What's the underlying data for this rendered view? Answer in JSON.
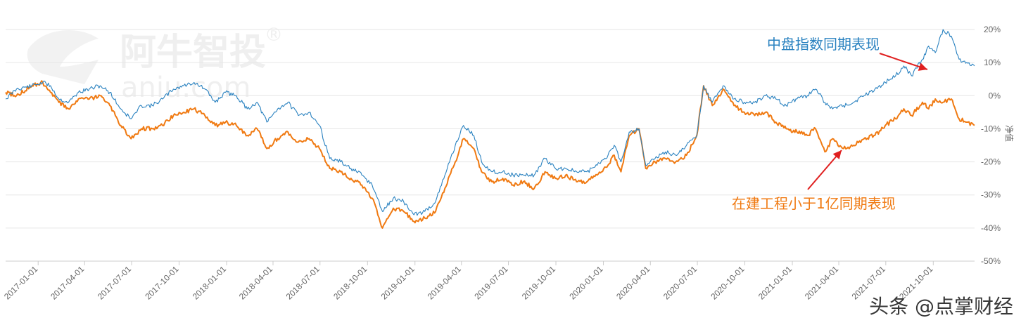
{
  "chart_data": {
    "type": "line",
    "x_tick_labels": [
      "2017-01-01",
      "2017-04-01",
      "2017-07-01",
      "2017-10-01",
      "2018-01-01",
      "2018-04-01",
      "2018-07-01",
      "2018-10-01",
      "2019-01-01",
      "2019-04-01",
      "2019-07-01",
      "2019-10-01",
      "2020-01-01",
      "2020-04-01",
      "2020-07-01",
      "2020-10-01",
      "2021-01-01",
      "2021-04-01",
      "2021-07-01",
      "2021-10-01"
    ],
    "y_tick_labels": [
      "20%",
      "10%",
      "0%",
      "-10%",
      "-20%",
      "-30%",
      "-40%",
      "-50%"
    ],
    "ylabel": "净值",
    "ylim": [
      -50,
      20
    ],
    "x_range": [
      "2016-10-30",
      "2021-12-20"
    ],
    "grid": "horizontal",
    "series": [
      {
        "name": "中盘指数同期表现",
        "color": "#2a82c0",
        "points": [
          [
            "2016-10-30",
            -1
          ],
          [
            "2016-11-20",
            2
          ],
          [
            "2016-12-20",
            3
          ],
          [
            "2017-01-10",
            4
          ],
          [
            "2017-01-25",
            3
          ],
          [
            "2017-02-10",
            -1
          ],
          [
            "2017-03-01",
            -2
          ],
          [
            "2017-03-20",
            1
          ],
          [
            "2017-04-10",
            2
          ],
          [
            "2017-05-01",
            3
          ],
          [
            "2017-05-20",
            1
          ],
          [
            "2017-06-10",
            -4
          ],
          [
            "2017-06-30",
            -7
          ],
          [
            "2017-07-20",
            -3
          ],
          [
            "2017-08-10",
            -3
          ],
          [
            "2017-08-30",
            -1
          ],
          [
            "2017-09-20",
            2
          ],
          [
            "2017-10-10",
            3
          ],
          [
            "2017-10-30",
            4
          ],
          [
            "2017-11-20",
            2
          ],
          [
            "2017-12-10",
            -2
          ],
          [
            "2017-12-30",
            1
          ],
          [
            "2018-01-20",
            0
          ],
          [
            "2018-02-10",
            -4
          ],
          [
            "2018-03-01",
            -2
          ],
          [
            "2018-03-20",
            -8
          ],
          [
            "2018-04-10",
            -4
          ],
          [
            "2018-04-30",
            -2
          ],
          [
            "2018-05-20",
            -6
          ],
          [
            "2018-06-10",
            -5
          ],
          [
            "2018-06-30",
            -9
          ],
          [
            "2018-07-20",
            -19
          ],
          [
            "2018-08-10",
            -20
          ],
          [
            "2018-08-30",
            -22
          ],
          [
            "2018-09-20",
            -24
          ],
          [
            "2018-10-10",
            -27
          ],
          [
            "2018-10-30",
            -35
          ],
          [
            "2018-11-20",
            -31
          ],
          [
            "2018-12-10",
            -32
          ],
          [
            "2018-12-30",
            -36
          ],
          [
            "2019-01-20",
            -35
          ],
          [
            "2019-02-10",
            -32
          ],
          [
            "2019-02-28",
            -24
          ],
          [
            "2019-03-20",
            -15
          ],
          [
            "2019-04-05",
            -9
          ],
          [
            "2019-04-25",
            -12
          ],
          [
            "2019-05-10",
            -20
          ],
          [
            "2019-05-30",
            -23
          ],
          [
            "2019-06-20",
            -23
          ],
          [
            "2019-07-10",
            -24
          ],
          [
            "2019-07-30",
            -24
          ],
          [
            "2019-08-20",
            -24
          ],
          [
            "2019-09-10",
            -19
          ],
          [
            "2019-09-30",
            -22
          ],
          [
            "2019-10-20",
            -22
          ],
          [
            "2019-11-10",
            -23
          ],
          [
            "2019-11-30",
            -23
          ],
          [
            "2019-12-20",
            -21
          ],
          [
            "2020-01-10",
            -18
          ],
          [
            "2020-01-22",
            -15
          ],
          [
            "2020-02-04",
            -20
          ],
          [
            "2020-02-20",
            -11
          ],
          [
            "2020-03-10",
            -10
          ],
          [
            "2020-03-23",
            -21
          ],
          [
            "2020-04-10",
            -19
          ],
          [
            "2020-04-30",
            -17
          ],
          [
            "2020-05-20",
            -18
          ],
          [
            "2020-06-10",
            -15
          ],
          [
            "2020-06-30",
            -12
          ],
          [
            "2020-07-13",
            3
          ],
          [
            "2020-07-30",
            -2
          ],
          [
            "2020-08-20",
            3
          ],
          [
            "2020-09-10",
            -1
          ],
          [
            "2020-09-30",
            -2
          ],
          [
            "2020-10-20",
            -2
          ],
          [
            "2020-11-10",
            0
          ],
          [
            "2020-11-30",
            -1
          ],
          [
            "2020-12-20",
            -3
          ],
          [
            "2021-01-10",
            -1
          ],
          [
            "2021-01-30",
            0
          ],
          [
            "2021-02-15",
            2
          ],
          [
            "2021-03-05",
            -2
          ],
          [
            "2021-03-20",
            -4
          ],
          [
            "2021-04-10",
            -3
          ],
          [
            "2021-04-30",
            -2
          ],
          [
            "2021-05-20",
            0
          ],
          [
            "2021-06-10",
            2
          ],
          [
            "2021-06-30",
            4
          ],
          [
            "2021-07-20",
            6
          ],
          [
            "2021-08-05",
            9
          ],
          [
            "2021-08-20",
            6
          ],
          [
            "2021-09-10",
            11
          ],
          [
            "2021-09-22",
            15
          ],
          [
            "2021-10-05",
            13
          ],
          [
            "2021-10-20",
            20
          ],
          [
            "2021-11-05",
            18
          ],
          [
            "2021-11-20",
            11
          ],
          [
            "2021-12-05",
            10
          ],
          [
            "2021-12-20",
            9
          ]
        ]
      },
      {
        "name": "在建工程小于1亿同期表现",
        "color": "#f07a12",
        "points": [
          [
            "2016-10-30",
            1
          ],
          [
            "2016-11-20",
            0
          ],
          [
            "2016-12-20",
            3
          ],
          [
            "2017-01-10",
            4
          ],
          [
            "2017-01-25",
            1
          ],
          [
            "2017-02-10",
            -2
          ],
          [
            "2017-03-01",
            -4
          ],
          [
            "2017-03-20",
            -1
          ],
          [
            "2017-04-10",
            -1
          ],
          [
            "2017-05-01",
            0
          ],
          [
            "2017-05-20",
            -3
          ],
          [
            "2017-06-10",
            -9
          ],
          [
            "2017-06-30",
            -13
          ],
          [
            "2017-07-20",
            -10
          ],
          [
            "2017-08-10",
            -10
          ],
          [
            "2017-08-30",
            -9
          ],
          [
            "2017-09-20",
            -6
          ],
          [
            "2017-10-10",
            -5
          ],
          [
            "2017-10-30",
            -4
          ],
          [
            "2017-11-20",
            -6
          ],
          [
            "2017-12-10",
            -9
          ],
          [
            "2017-12-30",
            -8
          ],
          [
            "2018-01-20",
            -9
          ],
          [
            "2018-02-10",
            -12
          ],
          [
            "2018-03-01",
            -10
          ],
          [
            "2018-03-20",
            -16
          ],
          [
            "2018-04-10",
            -13
          ],
          [
            "2018-04-30",
            -11
          ],
          [
            "2018-05-20",
            -14
          ],
          [
            "2018-06-10",
            -13
          ],
          [
            "2018-06-30",
            -16
          ],
          [
            "2018-07-20",
            -22
          ],
          [
            "2018-08-10",
            -23
          ],
          [
            "2018-08-30",
            -25
          ],
          [
            "2018-09-20",
            -27
          ],
          [
            "2018-10-10",
            -31
          ],
          [
            "2018-10-30",
            -40
          ],
          [
            "2018-11-20",
            -34
          ],
          [
            "2018-12-10",
            -35
          ],
          [
            "2018-12-30",
            -38
          ],
          [
            "2019-01-20",
            -37
          ],
          [
            "2019-02-10",
            -35
          ],
          [
            "2019-02-28",
            -28
          ],
          [
            "2019-03-20",
            -20
          ],
          [
            "2019-04-05",
            -13
          ],
          [
            "2019-04-25",
            -16
          ],
          [
            "2019-05-10",
            -23
          ],
          [
            "2019-05-30",
            -26
          ],
          [
            "2019-06-20",
            -25
          ],
          [
            "2019-07-10",
            -27
          ],
          [
            "2019-07-30",
            -26
          ],
          [
            "2019-08-20",
            -28
          ],
          [
            "2019-09-10",
            -23
          ],
          [
            "2019-09-30",
            -25
          ],
          [
            "2019-10-20",
            -24
          ],
          [
            "2019-11-10",
            -26
          ],
          [
            "2019-11-30",
            -26
          ],
          [
            "2019-12-20",
            -24
          ],
          [
            "2020-01-10",
            -21
          ],
          [
            "2020-01-22",
            -18
          ],
          [
            "2020-02-04",
            -23
          ],
          [
            "2020-02-20",
            -12
          ],
          [
            "2020-03-10",
            -10
          ],
          [
            "2020-03-23",
            -22
          ],
          [
            "2020-04-10",
            -20
          ],
          [
            "2020-04-30",
            -19
          ],
          [
            "2020-05-20",
            -20
          ],
          [
            "2020-06-10",
            -18
          ],
          [
            "2020-06-30",
            -12
          ],
          [
            "2020-07-13",
            3
          ],
          [
            "2020-07-30",
            -3
          ],
          [
            "2020-08-20",
            2
          ],
          [
            "2020-09-10",
            -3
          ],
          [
            "2020-09-30",
            -5
          ],
          [
            "2020-10-20",
            -6
          ],
          [
            "2020-11-10",
            -5
          ],
          [
            "2020-11-30",
            -8
          ],
          [
            "2020-12-20",
            -10
          ],
          [
            "2021-01-10",
            -11
          ],
          [
            "2021-01-30",
            -12
          ],
          [
            "2021-02-15",
            -10
          ],
          [
            "2021-03-05",
            -17
          ],
          [
            "2021-03-20",
            -13
          ],
          [
            "2021-04-10",
            -16
          ],
          [
            "2021-04-30",
            -15
          ],
          [
            "2021-05-20",
            -13
          ],
          [
            "2021-06-10",
            -12
          ],
          [
            "2021-06-30",
            -9
          ],
          [
            "2021-07-20",
            -7
          ],
          [
            "2021-08-05",
            -4
          ],
          [
            "2021-08-20",
            -6
          ],
          [
            "2021-09-10",
            -2
          ],
          [
            "2021-09-22",
            -4
          ],
          [
            "2021-10-05",
            -1
          ],
          [
            "2021-10-20",
            -2
          ],
          [
            "2021-11-05",
            -1
          ],
          [
            "2021-11-20",
            -7
          ],
          [
            "2021-12-05",
            -8
          ],
          [
            "2021-12-20",
            -9
          ]
        ]
      }
    ],
    "annotations": [
      {
        "text": "中盘指数同期表现",
        "color": "#2a82c0",
        "arrow_color": "#e02020",
        "target": [
          "2021-08-05",
          9
        ]
      },
      {
        "text": "在建工程小于1亿同期表现",
        "color": "#f07a12",
        "arrow_color": "#e02020",
        "target": [
          "2021-03-10",
          -17
        ]
      }
    ]
  },
  "watermarks": {
    "logo_text": "阿牛智投",
    "registered_mark": "®",
    "url_text": "aniu.com",
    "bottom_right": "头条 @点掌财经"
  }
}
